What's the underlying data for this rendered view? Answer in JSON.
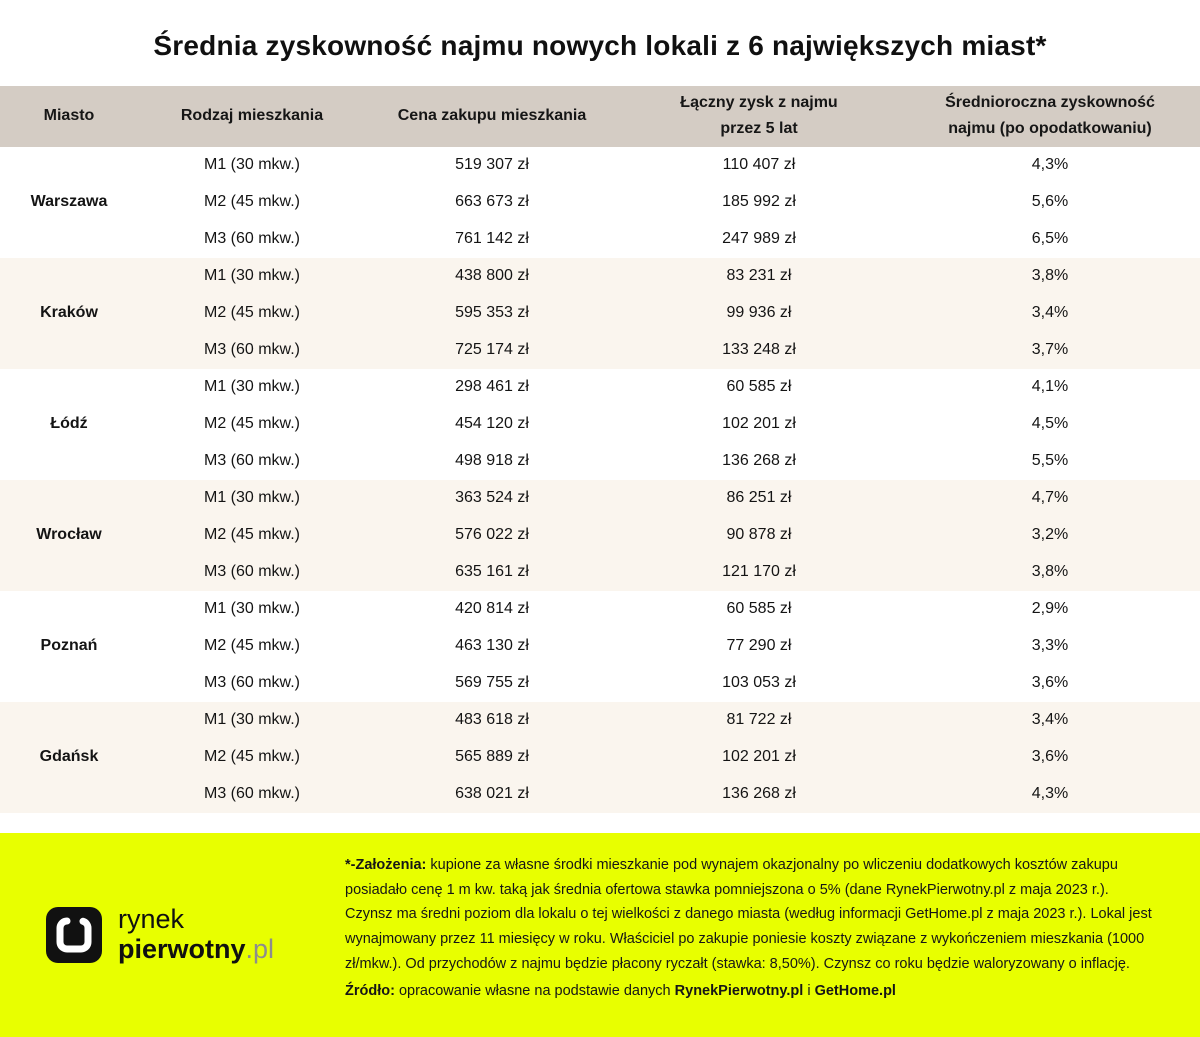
{
  "colors": {
    "header_bg": "#d4ccc4",
    "alt_group_bg": "#faf5ee",
    "footer_bg": "#e8ff00",
    "logo_suffix_gray": "#8d8d8d"
  },
  "chart_data": {
    "type": "table",
    "title": "Średnia zyskowność najmu nowych lokali z 6 największych miast*",
    "columns": [
      "Miasto",
      "Rodzaj mieszkania",
      "Cena zakupu mieszkania",
      "Łączny zysk z najmu\nprzez 5 lat",
      "Średnioroczna zyskowność\nnajmu (po opodatkowaniu)"
    ],
    "groups": [
      {
        "city": "Warszawa",
        "rows": [
          {
            "type": "M1 (30 mkw.)",
            "price": "519 307 zł",
            "profit": "110 407 zł",
            "yield": "4,3%"
          },
          {
            "type": "M2 (45 mkw.)",
            "price": "663 673 zł",
            "profit": "185 992 zł",
            "yield": "5,6%"
          },
          {
            "type": "M3 (60 mkw.)",
            "price": "761 142 zł",
            "profit": "247 989 zł",
            "yield": "6,5%"
          }
        ]
      },
      {
        "city": "Kraków",
        "rows": [
          {
            "type": "M1 (30 mkw.)",
            "price": "438 800 zł",
            "profit": "83 231 zł",
            "yield": "3,8%"
          },
          {
            "type": "M2 (45 mkw.)",
            "price": "595 353 zł",
            "profit": "99 936 zł",
            "yield": "3,4%"
          },
          {
            "type": "M3 (60 mkw.)",
            "price": "725 174 zł",
            "profit": "133 248 zł",
            "yield": "3,7%"
          }
        ]
      },
      {
        "city": "Łódź",
        "rows": [
          {
            "type": "M1 (30 mkw.)",
            "price": "298 461 zł",
            "profit": "60 585 zł",
            "yield": "4,1%"
          },
          {
            "type": "M2 (45 mkw.)",
            "price": "454 120 zł",
            "profit": "102 201 zł",
            "yield": "4,5%"
          },
          {
            "type": "M3 (60 mkw.)",
            "price": "498 918 zł",
            "profit": "136 268 zł",
            "yield": "5,5%"
          }
        ]
      },
      {
        "city": "Wrocław",
        "rows": [
          {
            "type": "M1 (30 mkw.)",
            "price": "363 524 zł",
            "profit": "86 251 zł",
            "yield": "4,7%"
          },
          {
            "type": "M2 (45 mkw.)",
            "price": "576 022 zł",
            "profit": "90 878 zł",
            "yield": "3,2%"
          },
          {
            "type": "M3 (60 mkw.)",
            "price": "635 161 zł",
            "profit": "121 170 zł",
            "yield": "3,8%"
          }
        ]
      },
      {
        "city": "Poznań",
        "rows": [
          {
            "type": "M1 (30 mkw.)",
            "price": "420 814 zł",
            "profit": "60 585 zł",
            "yield": "2,9%"
          },
          {
            "type": "M2 (45 mkw.)",
            "price": "463 130 zł",
            "profit": "77 290 zł",
            "yield": "3,3%"
          },
          {
            "type": "M3 (60 mkw.)",
            "price": "569 755 zł",
            "profit": "103 053 zł",
            "yield": "3,6%"
          }
        ]
      },
      {
        "city": "Gdańsk",
        "rows": [
          {
            "type": "M1 (30 mkw.)",
            "price": "483 618 zł",
            "profit": "81 722 zł",
            "yield": "3,4%"
          },
          {
            "type": "M2 (45 mkw.)",
            "price": "565 889 zł",
            "profit": "102 201 zł",
            "yield": "3,6%"
          },
          {
            "type": "M3 (60 mkw.)",
            "price": "638 021 zł",
            "profit": "136 268 zł",
            "yield": "4,3%"
          }
        ]
      }
    ]
  },
  "footer": {
    "logo": {
      "line1": "rynek",
      "line2_bold": "pierwotny",
      "line2_suffix": ".pl"
    },
    "assumptions_label": "*-Założenia:",
    "assumptions_text": " kupione za własne środki mieszkanie pod wynajem okazjonalny po wliczeniu dodatkowych kosztów zakupu posiadało cenę 1 m kw. taką jak średnia ofertowa stawka pomniejszona o 5% (dane RynekPierwotny.pl z maja 2023 r.). Czynsz ma średni poziom dla lokalu o tej wielkości z danego miasta (według informacji GetHome.pl z maja 2023 r.). Lokal jest wynajmowany przez 11 miesięcy w roku. Właściciel po zakupie poniesie koszty związane z wykończeniem mieszkania (1000 zł/mkw.). Od przychodów z najmu będzie płacony ryczałt (stawka: 8,50%). Czynsz co roku będzie waloryzowany o inflację.",
    "source_label": "Źródło:",
    "source_text": " opracowanie własne na podstawie danych ",
    "source_brand1": "RynekPierwotny.pl",
    "source_sep": " i ",
    "source_brand2": "GetHome.pl"
  }
}
